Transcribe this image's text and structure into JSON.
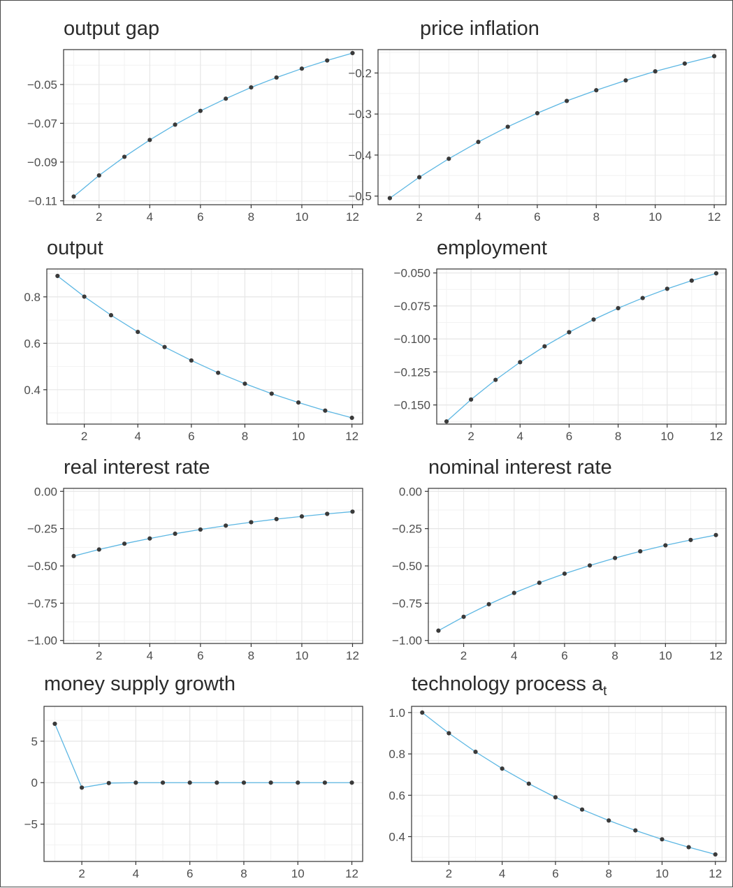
{
  "chart_data": [
    {
      "type": "line",
      "title": "output gap",
      "x": [
        1,
        2,
        3,
        4,
        5,
        6,
        7,
        8,
        9,
        10,
        11,
        12
      ],
      "series": [
        {
          "values": [
            -0.1078,
            -0.0969,
            -0.0873,
            -0.0786,
            -0.0707,
            -0.0636,
            -0.0573,
            -0.0515,
            -0.0464,
            -0.0418,
            -0.0376,
            -0.0338
          ]
        }
      ],
      "xlim": [
        0.6,
        12.4
      ],
      "ylim": [
        -0.112,
        -0.032
      ],
      "xticks": [
        2,
        4,
        6,
        8,
        10,
        12
      ],
      "xtick_labels": [
        "2",
        "4",
        "6",
        "8",
        "10",
        "12"
      ],
      "yticks": [
        -0.11,
        -0.09,
        -0.07,
        -0.05
      ],
      "ytick_labels": [
        "−0.11",
        "−0.09",
        "−0.07",
        "−0.05"
      ],
      "grid": true,
      "line_color": "#5db7e3",
      "point_color": "#3a3a3a"
    },
    {
      "type": "line",
      "title": "price inflation",
      "x": [
        1,
        2,
        3,
        4,
        5,
        6,
        7,
        8,
        9,
        10,
        11,
        12
      ],
      "series": [
        {
          "values": [
            -0.505,
            -0.454,
            -0.409,
            -0.368,
            -0.331,
            -0.298,
            -0.268,
            -0.242,
            -0.218,
            -0.196,
            -0.177,
            -0.159
          ]
        }
      ],
      "xlim": [
        0.6,
        12.4
      ],
      "ylim": [
        -0.521,
        -0.143
      ],
      "xticks": [
        2,
        4,
        6,
        8,
        10,
        12
      ],
      "xtick_labels": [
        "2",
        "4",
        "6",
        "8",
        "10",
        "12"
      ],
      "yticks": [
        -0.5,
        -0.4,
        -0.3,
        -0.2
      ],
      "ytick_labels": [
        "−0.5",
        "−0.4",
        "−0.3",
        "−0.2"
      ],
      "grid": true,
      "line_color": "#5db7e3",
      "point_color": "#3a3a3a"
    },
    {
      "type": "line",
      "title": "output",
      "x": [
        1,
        2,
        3,
        4,
        5,
        6,
        7,
        8,
        9,
        10,
        11,
        12
      ],
      "series": [
        {
          "values": [
            0.89,
            0.801,
            0.721,
            0.649,
            0.584,
            0.526,
            0.473,
            0.426,
            0.383,
            0.345,
            0.31,
            0.279
          ]
        }
      ],
      "xlim": [
        0.6,
        12.4
      ],
      "ylim": [
        0.252,
        0.92
      ],
      "xticks": [
        2,
        4,
        6,
        8,
        10,
        12
      ],
      "xtick_labels": [
        "2",
        "4",
        "6",
        "8",
        "10",
        "12"
      ],
      "yticks": [
        0.4,
        0.6,
        0.8
      ],
      "ytick_labels": [
        "0.4",
        "0.6",
        "0.8"
      ],
      "grid": true,
      "line_color": "#5db7e3",
      "point_color": "#3a3a3a"
    },
    {
      "type": "line",
      "title": "employment",
      "x": [
        1,
        2,
        3,
        4,
        5,
        6,
        7,
        8,
        9,
        10,
        11,
        12
      ],
      "series": [
        {
          "values": [
            -0.1625,
            -0.1459,
            -0.131,
            -0.1176,
            -0.1056,
            -0.0949,
            -0.0853,
            -0.0767,
            -0.069,
            -0.062,
            -0.0558,
            -0.0503
          ]
        }
      ],
      "xlim": [
        0.6,
        12.4
      ],
      "ylim": [
        -0.1645,
        -0.047
      ],
      "xticks": [
        2,
        4,
        6,
        8,
        10,
        12
      ],
      "xtick_labels": [
        "2",
        "4",
        "6",
        "8",
        "10",
        "12"
      ],
      "yticks": [
        -0.15,
        -0.125,
        -0.1,
        -0.075,
        -0.05
      ],
      "ytick_labels": [
        "−0.150",
        "−0.125",
        "−0.100",
        "−0.075",
        "−0.050"
      ],
      "grid": true,
      "line_color": "#5db7e3",
      "point_color": "#3a3a3a"
    },
    {
      "type": "line",
      "title": "real interest rate",
      "x": [
        1,
        2,
        3,
        4,
        5,
        6,
        7,
        8,
        9,
        10,
        11,
        12
      ],
      "series": [
        {
          "values": [
            -0.434,
            -0.39,
            -0.351,
            -0.316,
            -0.284,
            -0.256,
            -0.23,
            -0.207,
            -0.186,
            -0.168,
            -0.151,
            -0.136
          ]
        }
      ],
      "xlim": [
        0.6,
        12.4
      ],
      "ylim": [
        -1.02,
        0.02
      ],
      "xticks": [
        2,
        4,
        6,
        8,
        10,
        12
      ],
      "xtick_labels": [
        "2",
        "4",
        "6",
        "8",
        "10",
        "12"
      ],
      "yticks": [
        -1.0,
        -0.75,
        -0.5,
        -0.25,
        0.0
      ],
      "ytick_labels": [
        "−1.00",
        "−0.75",
        "−0.50",
        "−0.25",
        "0.00"
      ],
      "grid": true,
      "line_color": "#5db7e3",
      "point_color": "#3a3a3a"
    },
    {
      "type": "line",
      "title": "nominal interest rate",
      "x": [
        1,
        2,
        3,
        4,
        5,
        6,
        7,
        8,
        9,
        10,
        11,
        12
      ],
      "series": [
        {
          "values": [
            -0.934,
            -0.841,
            -0.757,
            -0.681,
            -0.613,
            -0.552,
            -0.497,
            -0.447,
            -0.402,
            -0.362,
            -0.326,
            -0.293
          ]
        }
      ],
      "xlim": [
        0.6,
        12.4
      ],
      "ylim": [
        -1.02,
        0.02
      ],
      "xticks": [
        2,
        4,
        6,
        8,
        10,
        12
      ],
      "xtick_labels": [
        "2",
        "4",
        "6",
        "8",
        "10",
        "12"
      ],
      "yticks": [
        -1.0,
        -0.75,
        -0.5,
        -0.25,
        0.0
      ],
      "ytick_labels": [
        "−1.00",
        "−0.75",
        "−0.50",
        "−0.25",
        "0.00"
      ],
      "grid": true,
      "line_color": "#5db7e3",
      "point_color": "#3a3a3a"
    },
    {
      "type": "line",
      "title": "money supply growth",
      "x": [
        1,
        2,
        3,
        4,
        5,
        6,
        7,
        8,
        9,
        10,
        11,
        12
      ],
      "series": [
        {
          "values": [
            7.1,
            -0.6,
            -0.05,
            0.0,
            0.0,
            0.0,
            0.0,
            0.0,
            0.0,
            0.0,
            0.0,
            0.0
          ]
        }
      ],
      "xlim": [
        0.6,
        12.4
      ],
      "ylim": [
        -9.5,
        9.2
      ],
      "xticks": [
        2,
        4,
        6,
        8,
        10,
        12
      ],
      "xtick_labels": [
        "2",
        "4",
        "6",
        "8",
        "10",
        "12"
      ],
      "yticks": [
        -5,
        0,
        5
      ],
      "ytick_labels": [
        "−5",
        "0",
        "5"
      ],
      "grid": true,
      "line_color": "#5db7e3",
      "point_color": "#3a3a3a"
    },
    {
      "type": "line",
      "title": "technology process a",
      "title_subscript": "t",
      "x": [
        1,
        2,
        3,
        4,
        5,
        6,
        7,
        8,
        9,
        10,
        11,
        12
      ],
      "series": [
        {
          "values": [
            1.0,
            0.9,
            0.81,
            0.729,
            0.656,
            0.59,
            0.531,
            0.478,
            0.43,
            0.387,
            0.349,
            0.314
          ]
        }
      ],
      "xlim": [
        0.6,
        12.4
      ],
      "ylim": [
        0.28,
        1.03
      ],
      "xticks": [
        2,
        4,
        6,
        8,
        10,
        12
      ],
      "xtick_labels": [
        "2",
        "4",
        "6",
        "8",
        "10",
        "12"
      ],
      "yticks": [
        0.4,
        0.6,
        0.8,
        1.0
      ],
      "ytick_labels": [
        "0.4",
        "0.6",
        "0.8",
        "1.0"
      ],
      "grid": true,
      "line_color": "#5db7e3",
      "point_color": "#3a3a3a"
    }
  ]
}
